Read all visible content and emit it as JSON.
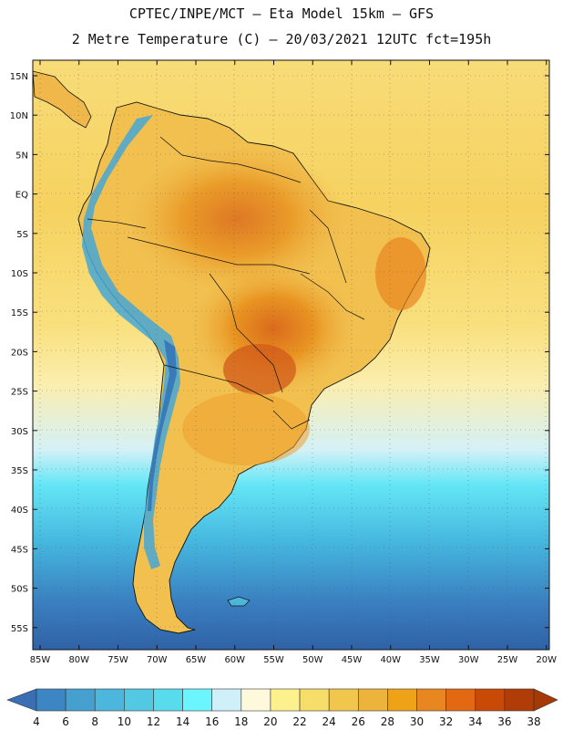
{
  "title_line1": "CPTEC/INPE/MCT –  Eta Model 15km – GFS",
  "title_line2": "2 Metre Temperature (C) – 20/03/2021 12UTC fct=195h",
  "lat_labels": [
    "15N",
    "10N",
    "5N",
    "EQ",
    "5S",
    "10S",
    "15S",
    "20S",
    "25S",
    "30S",
    "35S",
    "40S",
    "45S",
    "50S",
    "55S"
  ],
  "lon_labels": [
    "85W",
    "80W",
    "75W",
    "70W",
    "65W",
    "60W",
    "55W",
    "50W",
    "45W",
    "40W",
    "35W",
    "30W",
    "25W",
    "20W"
  ],
  "colorbar": {
    "labels": [
      "4",
      "6",
      "8",
      "10",
      "12",
      "14",
      "16",
      "18",
      "20",
      "22",
      "24",
      "26",
      "28",
      "30",
      "32",
      "34",
      "36",
      "38"
    ],
    "colors": [
      "#3a6fb3",
      "#3d86c4",
      "#45a0d0",
      "#4cb6dc",
      "#52c8e2",
      "#58dced",
      "#6af5ff",
      "#cfeff9",
      "#fff9dc",
      "#fdf18e",
      "#f7dd6a",
      "#f1c64c",
      "#edb43b",
      "#eda218",
      "#e8861f",
      "#e26912",
      "#c94a06",
      "#b03c07",
      "#a63a04"
    ]
  },
  "legend_colors": {
    "ocean_north": "#f6d56a",
    "ocean_mid": "#fbf0a6",
    "ocean_cool": "#c9eef6",
    "ocean_cold": "#58d8ee",
    "ocean_colder": "#3aa4d3",
    "ocean_coldest": "#2f62a6",
    "land_hot": "#e8951e",
    "land_warm": "#f0b84a",
    "andes_cold": "#47a7d6"
  }
}
